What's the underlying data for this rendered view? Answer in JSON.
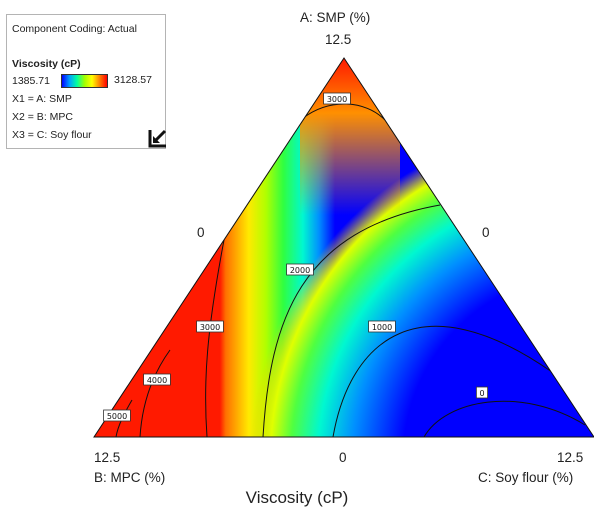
{
  "chart_data": {
    "type": "ternary-contour",
    "title": "Viscosity (cP)",
    "legend": {
      "coding": "Component Coding: Actual",
      "response_label": "Viscosity (cP)",
      "min": "1385.71",
      "max": "3128.57",
      "x1": "X1 = A: SMP",
      "x2": "X2 = B: MPC",
      "x3": "X3 = C: Soy flour"
    },
    "vertices": {
      "top": {
        "label": "A: SMP (%)",
        "high": "12.5"
      },
      "left": {
        "label": "B: MPC (%)",
        "high": "12.5"
      },
      "right": {
        "label": "C: Soy flour (%)",
        "high": "12.5"
      }
    },
    "zero_labels": {
      "left_edge": "0",
      "right_edge": "0",
      "bottom_edge": "0"
    },
    "contours": [
      "0",
      "1000",
      "2000",
      "3000",
      "3000",
      "4000",
      "5000"
    ],
    "colorscale": [
      "#0000ff",
      "#00a0ff",
      "#00ffa0",
      "#a0ff00",
      "#ffff00",
      "#ff8000",
      "#ff0000"
    ]
  }
}
